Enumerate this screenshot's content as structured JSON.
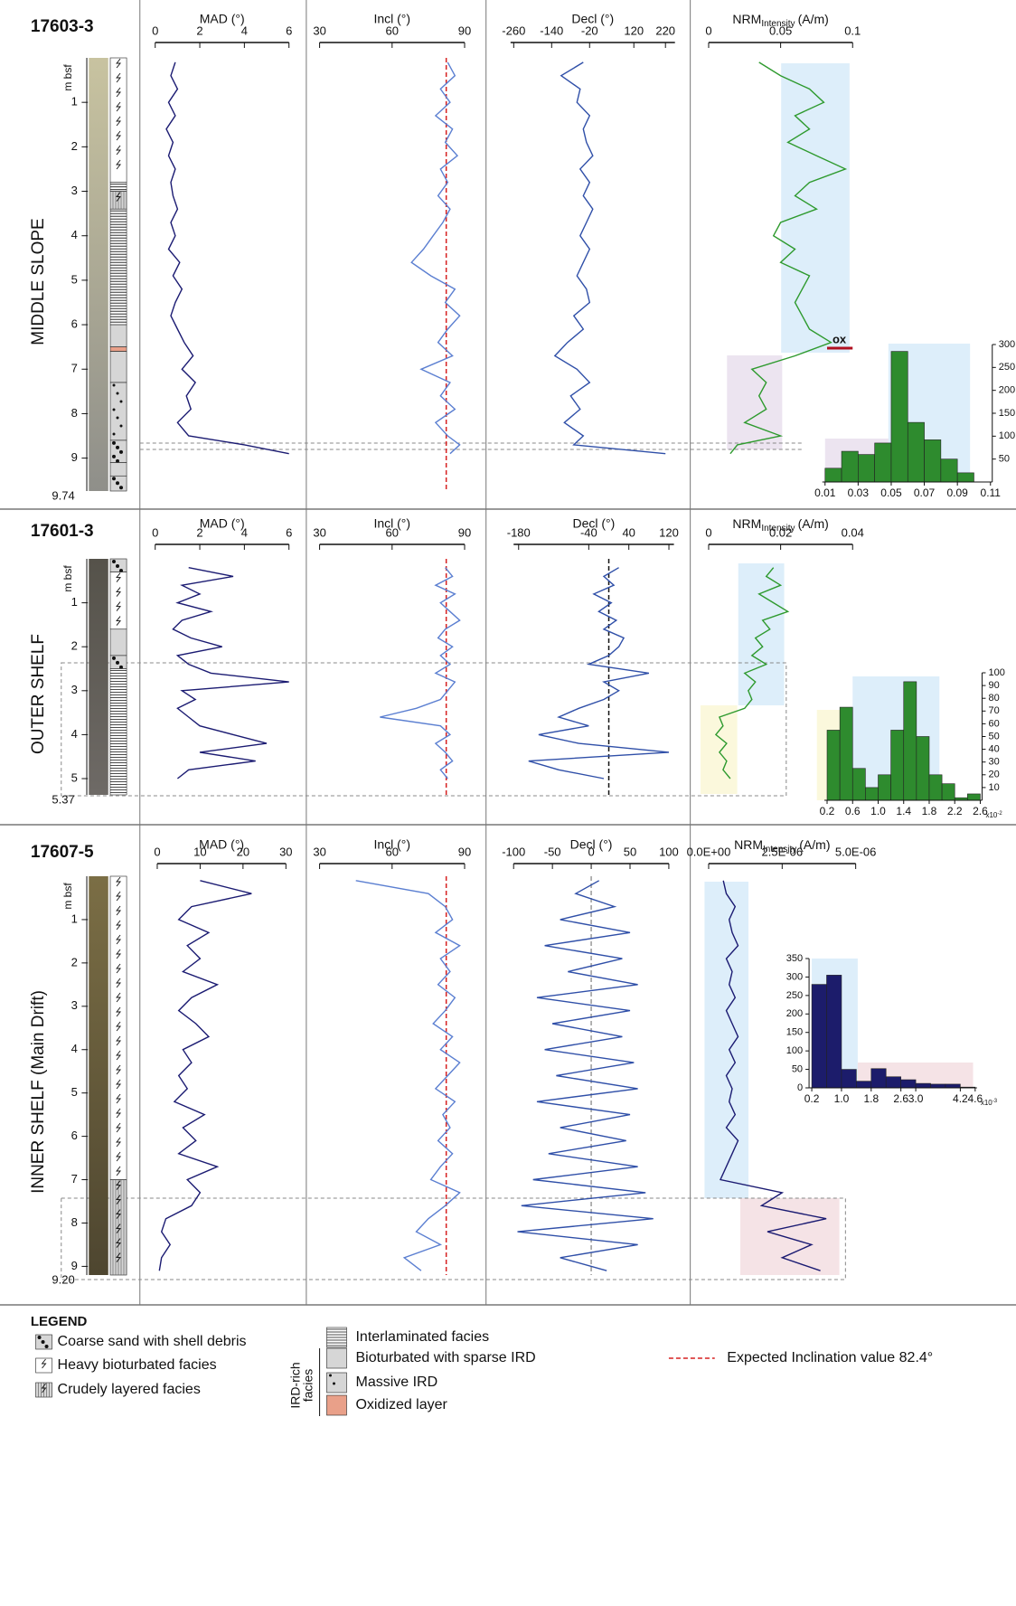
{
  "cores": [
    {
      "id": "17603-3",
      "setting": "MIDDLE SLOPE",
      "depth_label": "m bsf",
      "ylim": [
        0,
        9.74
      ],
      "yticks": [
        1,
        2,
        3,
        4,
        5,
        6,
        7,
        8,
        9
      ],
      "bottom": 9.74
    },
    {
      "id": "17601-3",
      "setting": "OUTER SHELF",
      "depth_label": "m bsf",
      "ylim": [
        0,
        5.37
      ],
      "yticks": [
        1,
        2,
        3,
        4,
        5
      ],
      "bottom": 5.37
    },
    {
      "id": "17607-5",
      "setting": "INNER SHELF (Main Drift)",
      "depth_label": "m bsf",
      "ylim": [
        0,
        9.2
      ],
      "yticks": [
        1,
        2,
        3,
        4,
        5,
        6,
        7,
        8,
        9
      ],
      "bottom": {
        "value": 9.2,
        "label": "9.20"
      }
    }
  ],
  "chart_data": [
    {
      "type": "line",
      "title": "MAD (°)",
      "xlim": [
        0,
        6
      ],
      "xticks": [
        0,
        2,
        4,
        6
      ],
      "color": "#1b1b72",
      "y": [
        0.1,
        0.4,
        0.7,
        1.0,
        1.3,
        1.6,
        1.9,
        2.2,
        2.5,
        2.8,
        3.1,
        3.4,
        3.7,
        4.0,
        4.3,
        4.6,
        4.9,
        5.2,
        5.5,
        5.8,
        6.1,
        6.4,
        6.7,
        7.0,
        7.3,
        7.6,
        7.9,
        8.2,
        8.5,
        8.7,
        8.9
      ],
      "values": [
        0.9,
        0.7,
        1.0,
        0.6,
        0.9,
        0.5,
        0.8,
        0.6,
        0.9,
        0.7,
        0.8,
        1.0,
        0.7,
        0.9,
        0.6,
        1.1,
        0.8,
        1.2,
        0.9,
        0.7,
        1.0,
        1.3,
        1.7,
        1.2,
        1.8,
        1.4,
        1.6,
        1.0,
        1.5,
        4.0,
        6.0
      ]
    },
    {
      "type": "line",
      "title": "Incl (°)",
      "xlim": [
        30,
        90
      ],
      "xticks": [
        30,
        60,
        90
      ],
      "color": "#5b7fd1",
      "reference_line": 82.4,
      "reference_color": "#d62020",
      "y": [
        0.1,
        0.4,
        0.7,
        1.0,
        1.3,
        1.6,
        1.9,
        2.2,
        2.5,
        2.8,
        3.1,
        3.4,
        3.7,
        4.0,
        4.3,
        4.6,
        4.9,
        5.2,
        5.5,
        5.8,
        6.1,
        6.4,
        6.7,
        7.0,
        7.3,
        7.6,
        7.9,
        8.2,
        8.5,
        8.7,
        8.9
      ],
      "values": [
        83,
        86,
        80,
        84,
        78,
        85,
        82,
        87,
        80,
        83,
        79,
        84,
        81,
        77,
        73,
        68,
        76,
        86,
        82,
        88,
        83,
        79,
        85,
        72,
        84,
        80,
        86,
        78,
        83,
        88,
        84
      ]
    },
    {
      "type": "line",
      "title": "Decl (°)",
      "xlim": [
        -270,
        250
      ],
      "xticks": [
        -260,
        -140,
        -20,
        120,
        220
      ],
      "color": "#2f4fa8",
      "y": [
        0.1,
        0.4,
        0.7,
        1.0,
        1.3,
        1.6,
        1.9,
        2.2,
        2.5,
        2.8,
        3.1,
        3.4,
        3.7,
        4.0,
        4.3,
        4.6,
        4.9,
        5.2,
        5.5,
        5.8,
        6.1,
        6.4,
        6.7,
        7.0,
        7.3,
        7.6,
        7.9,
        8.2,
        8.5,
        8.7,
        8.9
      ],
      "values": [
        -40,
        -110,
        -50,
        -60,
        -20,
        -40,
        -30,
        -10,
        -50,
        -20,
        -40,
        -10,
        -30,
        -50,
        -20,
        -40,
        -60,
        -30,
        -20,
        -70,
        -40,
        -90,
        -130,
        -60,
        -20,
        -80,
        -50,
        -100,
        -40,
        -70,
        220
      ]
    },
    {
      "type": "line",
      "title": "NRM",
      "title_sub": "Intensity",
      "title_unit": "(A/m)",
      "xlim": [
        0,
        0.1
      ],
      "xticks": [
        0,
        0.05,
        0.1
      ],
      "color": "#2e9a2e",
      "annotation": "ox",
      "y": [
        0.1,
        0.4,
        0.7,
        1.0,
        1.3,
        1.6,
        1.9,
        2.2,
        2.5,
        2.8,
        3.1,
        3.4,
        3.7,
        4.0,
        4.3,
        4.6,
        4.9,
        5.2,
        5.5,
        5.8,
        6.1,
        6.4,
        6.7,
        7.0,
        7.3,
        7.6,
        7.9,
        8.2,
        8.5,
        8.7,
        8.9
      ],
      "values": [
        0.035,
        0.05,
        0.07,
        0.08,
        0.06,
        0.07,
        0.055,
        0.075,
        0.095,
        0.07,
        0.06,
        0.075,
        0.05,
        0.045,
        0.06,
        0.05,
        0.07,
        0.065,
        0.06,
        0.065,
        0.07,
        0.085,
        0.06,
        0.03,
        0.04,
        0.035,
        0.04,
        0.025,
        0.05,
        0.02,
        0.015
      ]
    },
    {
      "type": "histogram",
      "color": "#2e8b2e",
      "bins": [
        0.01,
        0.02,
        0.03,
        0.04,
        0.05,
        0.06,
        0.07,
        0.08,
        0.09,
        0.1
      ],
      "values": [
        30,
        67,
        60,
        85,
        285,
        130,
        92,
        50,
        20
      ],
      "xlim": [
        0.01,
        0.11
      ],
      "xticks": [
        0.01,
        0.03,
        0.05,
        0.07,
        0.09,
        0.11
      ],
      "ylim": [
        0,
        300
      ],
      "yticks": [
        50,
        100,
        150,
        200,
        250,
        300
      ]
    },
    {
      "type": "line",
      "title": "MAD (°)",
      "xlim": [
        0,
        6
      ],
      "xticks": [
        0,
        2,
        4,
        6
      ],
      "color": "#1b1b72",
      "y": [
        0.2,
        0.4,
        0.6,
        0.8,
        1.0,
        1.2,
        1.4,
        1.6,
        1.8,
        2.0,
        2.2,
        2.4,
        2.6,
        2.8,
        3.0,
        3.2,
        3.4,
        3.6,
        3.8,
        4.0,
        4.2,
        4.4,
        4.6,
        4.8,
        5.0
      ],
      "values": [
        1.5,
        3.5,
        1.2,
        2.0,
        1.0,
        2.5,
        1.2,
        0.8,
        1.6,
        3.0,
        1.0,
        1.5,
        2.5,
        6.0,
        1.2,
        1.8,
        1.0,
        1.5,
        2.0,
        3.5,
        5.0,
        2.0,
        4.5,
        1.5,
        1.0
      ]
    },
    {
      "type": "line",
      "title": "Incl (°)",
      "xlim": [
        30,
        90
      ],
      "xticks": [
        30,
        60,
        90
      ],
      "color": "#5b7fd1",
      "reference_line": 82.4,
      "reference_color": "#d62020",
      "y": [
        0.2,
        0.4,
        0.6,
        0.8,
        1.0,
        1.2,
        1.4,
        1.6,
        1.8,
        2.0,
        2.2,
        2.4,
        2.6,
        2.8,
        3.0,
        3.2,
        3.4,
        3.6,
        3.8,
        4.0,
        4.2,
        4.4,
        4.6,
        4.8,
        5.0
      ],
      "values": [
        82,
        85,
        78,
        86,
        80,
        84,
        88,
        82,
        79,
        85,
        80,
        84,
        78,
        86,
        83,
        80,
        70,
        55,
        80,
        84,
        78,
        82,
        85,
        80,
        83
      ]
    },
    {
      "type": "line",
      "title": "Decl (°)",
      "xlim": [
        -190,
        130
      ],
      "xticks": [
        -180,
        -40,
        40,
        120
      ],
      "color": "#2f4fa8",
      "reference_line": 0,
      "reference_color": "#111111",
      "y": [
        0.2,
        0.4,
        0.6,
        0.8,
        1.0,
        1.2,
        1.4,
        1.6,
        1.8,
        2.0,
        2.2,
        2.4,
        2.6,
        2.8,
        3.0,
        3.2,
        3.4,
        3.6,
        3.8,
        4.0,
        4.2,
        4.4,
        4.6,
        4.8,
        5.0
      ],
      "values": [
        20,
        -10,
        10,
        -30,
        5,
        -20,
        15,
        -10,
        30,
        20,
        0,
        -40,
        80,
        -10,
        20,
        -10,
        -60,
        -100,
        -40,
        -140,
        -60,
        120,
        -160,
        -100,
        -10
      ]
    },
    {
      "type": "line",
      "title": "NRM",
      "title_sub": "Intensity",
      "title_unit": "(A/m)",
      "xlim": [
        0,
        0.04
      ],
      "xticks": [
        0,
        0.02,
        0.04
      ],
      "color": "#2e9a2e",
      "y": [
        0.2,
        0.4,
        0.6,
        0.8,
        1.0,
        1.2,
        1.4,
        1.6,
        1.8,
        2.0,
        2.2,
        2.4,
        2.6,
        2.8,
        3.0,
        3.2,
        3.4,
        3.6,
        3.8,
        4.0,
        4.2,
        4.4,
        4.6,
        4.8,
        5.0
      ],
      "values": [
        0.018,
        0.016,
        0.02,
        0.014,
        0.018,
        0.022,
        0.015,
        0.017,
        0.013,
        0.015,
        0.012,
        0.016,
        0.01,
        0.013,
        0.011,
        0.012,
        0.01,
        0.003,
        0.004,
        0.002,
        0.005,
        0.003,
        0.005,
        0.004,
        0.006
      ]
    },
    {
      "type": "histogram",
      "color": "#2e8b2e",
      "bins": [
        0.2,
        0.4,
        0.6,
        0.8,
        1.0,
        1.2,
        1.4,
        1.6,
        1.8,
        2.0,
        2.2,
        2.4,
        2.6
      ],
      "values": [
        55,
        73,
        25,
        10,
        20,
        55,
        93,
        50,
        20,
        13,
        2,
        5
      ],
      "xlim": [
        0.2,
        2.6
      ],
      "xticks": [
        0.2,
        0.6,
        {
          "value": 1,
          "label": "1.0"
        },
        1.4,
        1.8,
        2.2,
        2.6
      ],
      "ylim": [
        0,
        100
      ],
      "yticks": [
        10,
        20,
        30,
        40,
        50,
        60,
        70,
        80,
        90,
        100
      ],
      "x_note": "x10",
      "x_note_exp": "-2"
    },
    {
      "type": "line",
      "title": "MAD (°)",
      "xlim": [
        0,
        30
      ],
      "xticks": [
        0,
        10,
        20,
        30
      ],
      "color": "#1b1b72",
      "y": [
        0.1,
        0.4,
        0.7,
        1.0,
        1.3,
        1.6,
        1.9,
        2.2,
        2.5,
        2.8,
        3.1,
        3.4,
        3.7,
        4.0,
        4.3,
        4.6,
        4.9,
        5.2,
        5.5,
        5.8,
        6.1,
        6.4,
        6.7,
        7.0,
        7.3,
        7.6,
        7.9,
        8.2,
        8.5,
        8.8,
        9.1
      ],
      "values": [
        10,
        22,
        8,
        5,
        12,
        7,
        10,
        6,
        14,
        8,
        5,
        9,
        12,
        6,
        8,
        5,
        7,
        4,
        11,
        6,
        9,
        5,
        14,
        7,
        10,
        8,
        2,
        1,
        3,
        1,
        0.5
      ]
    },
    {
      "type": "line",
      "title": "Incl (°)",
      "xlim": [
        30,
        90
      ],
      "xticks": [
        30,
        60,
        90
      ],
      "color": "#5b7fd1",
      "reference_line": 82.4,
      "reference_color": "#d62020",
      "y": [
        0.1,
        0.4,
        0.7,
        1.0,
        1.3,
        1.6,
        1.9,
        2.2,
        2.5,
        2.8,
        3.1,
        3.4,
        3.7,
        4.0,
        4.3,
        4.6,
        4.9,
        5.2,
        5.5,
        5.8,
        6.1,
        6.4,
        6.7,
        7.0,
        7.3,
        7.6,
        7.9,
        8.2,
        8.5,
        8.8,
        9.1
      ],
      "values": [
        45,
        75,
        82,
        85,
        78,
        88,
        80,
        84,
        79,
        86,
        82,
        77,
        85,
        80,
        88,
        83,
        78,
        86,
        81,
        84,
        79,
        85,
        80,
        76,
        88,
        82,
        75,
        70,
        80,
        65,
        72
      ]
    },
    {
      "type": "line",
      "title": "Decl (°)",
      "xlim": [
        -100,
        100
      ],
      "xticks": [
        -100,
        -50,
        0,
        50,
        100
      ],
      "color": "#2f4fa8",
      "reference_line": 0,
      "reference_color": "#999999",
      "y": [
        0.1,
        0.4,
        0.7,
        1.0,
        1.3,
        1.6,
        1.9,
        2.2,
        2.5,
        2.8,
        3.1,
        3.4,
        3.7,
        4.0,
        4.3,
        4.6,
        4.9,
        5.2,
        5.5,
        5.8,
        6.1,
        6.4,
        6.7,
        7.0,
        7.3,
        7.6,
        7.9,
        8.2,
        8.5,
        8.8,
        9.1
      ],
      "values": [
        10,
        -20,
        30,
        -40,
        50,
        -60,
        40,
        -30,
        60,
        -70,
        50,
        -50,
        40,
        -60,
        55,
        -45,
        60,
        -70,
        50,
        -40,
        45,
        -55,
        60,
        -75,
        70,
        -90,
        80,
        -95,
        60,
        -40,
        20
      ]
    },
    {
      "type": "line",
      "title": "NRM",
      "title_sub": "Intensity",
      "title_unit": "(A/m)",
      "xlim": [
        0,
        5e-06
      ],
      "xticks": [
        {
          "value": 0,
          "label": "0.0E+00"
        },
        {
          "value": 2.5e-06,
          "label": "2.5E-06"
        },
        {
          "value": 5e-06,
          "label": "5.0E-06"
        }
      ],
      "color": "#1b1b72",
      "y": [
        0.1,
        0.4,
        0.7,
        1.0,
        1.3,
        1.6,
        1.9,
        2.2,
        2.5,
        2.8,
        3.1,
        3.4,
        3.7,
        4.0,
        4.3,
        4.6,
        4.9,
        5.2,
        5.5,
        5.8,
        6.1,
        6.4,
        6.7,
        7.0,
        7.3,
        7.6,
        7.9,
        8.2,
        8.5,
        8.8,
        9.1
      ],
      "values": [
        5e-07,
        6e-07,
        9e-07,
        7e-07,
        8e-07,
        1e-06,
        6e-07,
        8e-07,
        7e-07,
        9e-07,
        6e-07,
        8e-07,
        1e-06,
        7e-07,
        9e-07,
        6e-07,
        8e-07,
        7e-07,
        9e-07,
        6e-07,
        1e-06,
        8e-07,
        6e-07,
        4e-07,
        2.5e-06,
        1.8e-06,
        4e-06,
        2e-06,
        3.5e-06,
        2.5e-06,
        3.8e-06
      ]
    },
    {
      "type": "histogram",
      "color": "#1c1c6b",
      "bins": [
        0.2,
        0.6,
        1.0,
        1.4,
        1.8,
        2.2,
        2.6,
        3.0,
        3.4,
        3.8,
        4.2,
        4.6
      ],
      "values": [
        280,
        305,
        50,
        18,
        52,
        30,
        22,
        12,
        10,
        10,
        2
      ],
      "xlim": [
        0.2,
        4.6
      ],
      "xticks": [
        0.2,
        {
          "value": 1,
          "label": "1.0"
        },
        1.8,
        2.6,
        {
          "value": 3,
          "label": "3.0"
        },
        4.2,
        4.6
      ],
      "ylim": [
        0,
        350
      ],
      "yticks": [
        0,
        50,
        100,
        150,
        200,
        250,
        300,
        350
      ],
      "x_note": "x10",
      "x_note_exp": "-3"
    }
  ],
  "legend": {
    "title": "LEGEND",
    "items": [
      "Coarse sand with shell debris",
      "Heavy bioturbated facies",
      "Crudely layered facies",
      "Interlaminated facies",
      "Bioturbated with sparse IRD",
      "Massive IRD",
      "Oxidized layer"
    ],
    "group": [
      "IRD-rich",
      "facies"
    ],
    "expected": "Expected Inclination value 82.4°"
  }
}
